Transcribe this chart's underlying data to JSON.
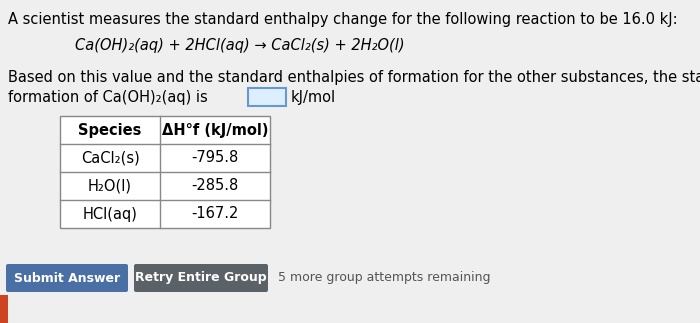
{
  "title_line1": "A scientist measures the standard enthalpy change for the following reaction to be 16.0 kJ:",
  "reaction": "Ca(OH)₂(aq) + 2HCl(aq) → CaCl₂(s) + 2H₂O(l)",
  "body_text_line1": "Based on this value and the standard enthalpies of formation for the other substances, the standard enthalpy of",
  "body_text_line2": "formation of Ca(OH)₂(aq) is",
  "body_text_line2_end": "kJ/mol",
  "table_header_col1": "Species",
  "table_header_col2": "ΔH°f (kJ/mol)",
  "table_rows": [
    [
      "CaCl₂(s)",
      "-795.8"
    ],
    [
      "H₂O(l)",
      "-285.8"
    ],
    [
      "HCl(aq)",
      "-167.2"
    ]
  ],
  "btn1_text": "Submit Answer",
  "btn2_text": "Retry Entire Group",
  "btn1_color": "#4a6fa5",
  "btn2_color": "#5a6268",
  "attempts_text": "5 more group attempts remaining",
  "bg_color": "#efefef",
  "input_box_border": "#6699cc",
  "input_box_fill": "#ddeeff",
  "table_border_color": "#888888",
  "font_size_title": 10.5,
  "font_size_reaction": 10.5,
  "font_size_body": 10.5,
  "font_size_table": 10.5,
  "font_size_btn": 9.0,
  "font_size_attempts": 9.0
}
